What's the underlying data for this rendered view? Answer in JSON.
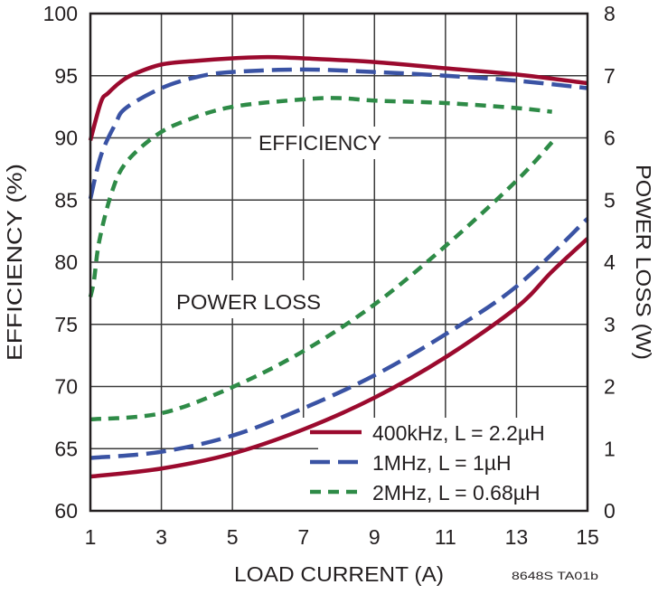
{
  "chart_data": {
    "type": "line",
    "xlabel": "LOAD CURRENT (A)",
    "ylabel": "EFFICIENCY (%)",
    "y2label": "POWER LOSS (W)",
    "xlim": [
      1,
      15
    ],
    "ylim": [
      60,
      100
    ],
    "y2lim": [
      0,
      8
    ],
    "xticks": [
      "1",
      "3",
      "5",
      "7",
      "9",
      "11",
      "13",
      "15"
    ],
    "yticks": [
      "60",
      "65",
      "70",
      "75",
      "80",
      "85",
      "90",
      "95",
      "100"
    ],
    "y2ticks": [
      "0",
      "1",
      "2",
      "3",
      "4",
      "5",
      "6",
      "7",
      "8"
    ],
    "grid": true,
    "legend_position": "bottom-right",
    "annotations": {
      "efficiency": "EFFICIENCY",
      "power_loss": "POWER LOSS"
    },
    "footnote": "8648S TA01b",
    "series": [
      {
        "name": "400kHz, L = 2.2µH",
        "color": "#9b0a2e",
        "dash": "solid",
        "efficiency": {
          "x": [
            1,
            1.3,
            1.5,
            1.85,
            2.2,
            3,
            4,
            5,
            6,
            7,
            9,
            11,
            13,
            15
          ],
          "y": [
            89.8,
            92.9,
            93.6,
            94.5,
            95.1,
            95.9,
            96.2,
            96.4,
            96.5,
            96.4,
            96.1,
            95.6,
            95.1,
            94.4
          ]
        },
        "power_loss": {
          "x": [
            1,
            3,
            5,
            7,
            9,
            11,
            13,
            14,
            15
          ],
          "y": [
            0.55,
            0.68,
            0.92,
            1.31,
            1.82,
            2.47,
            3.27,
            3.85,
            4.38
          ]
        }
      },
      {
        "name": "1MHz, L = 1µH",
        "color": "#3a53a4",
        "dash": "long",
        "efficiency": {
          "x": [
            1,
            1.3,
            1.7,
            2,
            3,
            4,
            5,
            7,
            9,
            11,
            13,
            15
          ],
          "y": [
            85.1,
            88.6,
            91.1,
            92.4,
            94.0,
            94.9,
            95.3,
            95.5,
            95.3,
            95.0,
            94.6,
            94.0
          ]
        },
        "power_loss": {
          "x": [
            1,
            3,
            5,
            7,
            9,
            11,
            13,
            15
          ],
          "y": [
            0.85,
            0.95,
            1.21,
            1.65,
            2.18,
            2.84,
            3.61,
            4.7
          ]
        }
      },
      {
        "name": "2MHz, L = 0.68µH",
        "color": "#2e8b47",
        "dash": "short",
        "efficiency": {
          "x": [
            1,
            1.1,
            1.25,
            1.6,
            2,
            2.85,
            3.7,
            5,
            7,
            8,
            9,
            11,
            13,
            14
          ],
          "y": [
            77.2,
            78.5,
            81.7,
            85.6,
            88.0,
            90.2,
            91.4,
            92.5,
            93.1,
            93.2,
            93.0,
            92.8,
            92.4,
            92.1
          ]
        },
        "power_loss": {
          "x": [
            1,
            3,
            5,
            7,
            9,
            11,
            13,
            14
          ],
          "y": [
            1.47,
            1.57,
            1.99,
            2.57,
            3.32,
            4.26,
            5.31,
            5.93
          ]
        }
      }
    ]
  }
}
